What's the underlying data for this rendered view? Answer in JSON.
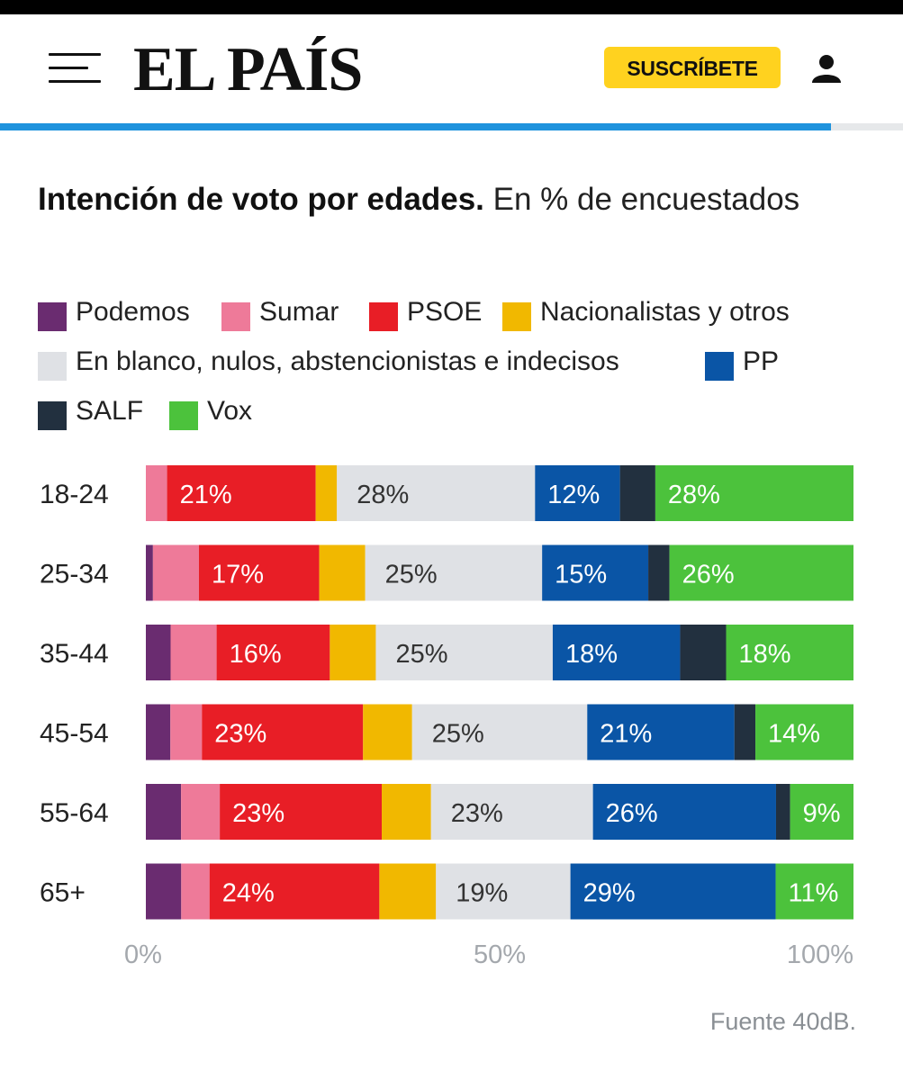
{
  "header": {
    "logo_text": "EL PAÍS",
    "subscribe_label": "SUSCRÍBETE",
    "menu_icon": "hamburger-menu-icon",
    "user_icon": "user-icon",
    "reading_progress": 0.92
  },
  "colors": {
    "Podemos": "#6a2c70",
    "Sumar": "#ee7a99",
    "PSOE": "#e81e26",
    "Nacionalistas y otros": "#f1b800",
    "En blanco, nulos, abstencionistas e indecisos": "#dfe1e5",
    "PP": "#0a55a6",
    "SALF": "#22303f",
    "Vox": "#4cc23c",
    "accent": "#1f93dd",
    "subscribe": "#ffd21f"
  },
  "chart_data": {
    "type": "bar",
    "orientation": "horizontal",
    "stacked": true,
    "title": "Intención de voto por edades.",
    "subtitle": "En % de encuestados",
    "categories": [
      "18-24",
      "25-34",
      "35-44",
      "45-54",
      "55-64",
      "65+"
    ],
    "series": [
      {
        "name": "Podemos",
        "values": [
          0,
          1,
          3.5,
          3.5,
          5,
          5
        ]
      },
      {
        "name": "Sumar",
        "values": [
          3,
          6.5,
          6.5,
          4.5,
          5.5,
          4
        ]
      },
      {
        "name": "PSOE",
        "values": [
          21,
          17,
          16,
          23,
          23,
          24
        ]
      },
      {
        "name": "Nacionalistas y otros",
        "values": [
          3,
          6.5,
          6.5,
          7,
          7,
          8
        ]
      },
      {
        "name": "En blanco, nulos, abstencionistas e indecisos",
        "values": [
          28,
          25,
          25,
          25,
          23,
          19
        ]
      },
      {
        "name": "PP",
        "values": [
          12,
          15,
          18,
          21,
          26,
          29
        ]
      },
      {
        "name": "SALF",
        "values": [
          5,
          3,
          6.5,
          3,
          2,
          0
        ]
      },
      {
        "name": "Vox",
        "values": [
          28,
          26,
          18,
          14,
          9,
          11
        ]
      }
    ],
    "data_labels": [
      {
        "category": "18-24",
        "labels": {
          "PSOE": "21%",
          "En blanco, nulos, abstencionistas e indecisos": "28%",
          "PP": "12%",
          "Vox": "28%"
        }
      },
      {
        "category": "25-34",
        "labels": {
          "PSOE": "17%",
          "En blanco, nulos, abstencionistas e indecisos": "25%",
          "PP": "15%",
          "Vox": "26%"
        }
      },
      {
        "category": "35-44",
        "labels": {
          "PSOE": "16%",
          "En blanco, nulos, abstencionistas e indecisos": "25%",
          "PP": "18%",
          "Vox": "18%"
        }
      },
      {
        "category": "45-54",
        "labels": {
          "PSOE": "23%",
          "En blanco, nulos, abstencionistas e indecisos": "25%",
          "PP": "21%",
          "Vox": "14%"
        }
      },
      {
        "category": "55-64",
        "labels": {
          "PSOE": "23%",
          "En blanco, nulos, abstencionistas e indecisos": "23%",
          "PP": "26%",
          "Vox": "9%"
        }
      },
      {
        "category": "65+",
        "labels": {
          "PSOE": "24%",
          "En blanco, nulos, abstencionistas e indecisos": "19%",
          "PP": "29%",
          "Vox": "11%"
        }
      }
    ],
    "xlim": [
      0,
      100
    ],
    "x_ticks": [
      "0%",
      "50%",
      "100%"
    ],
    "legend_position": "top",
    "grid": false
  },
  "source": "Fuente 40dB."
}
